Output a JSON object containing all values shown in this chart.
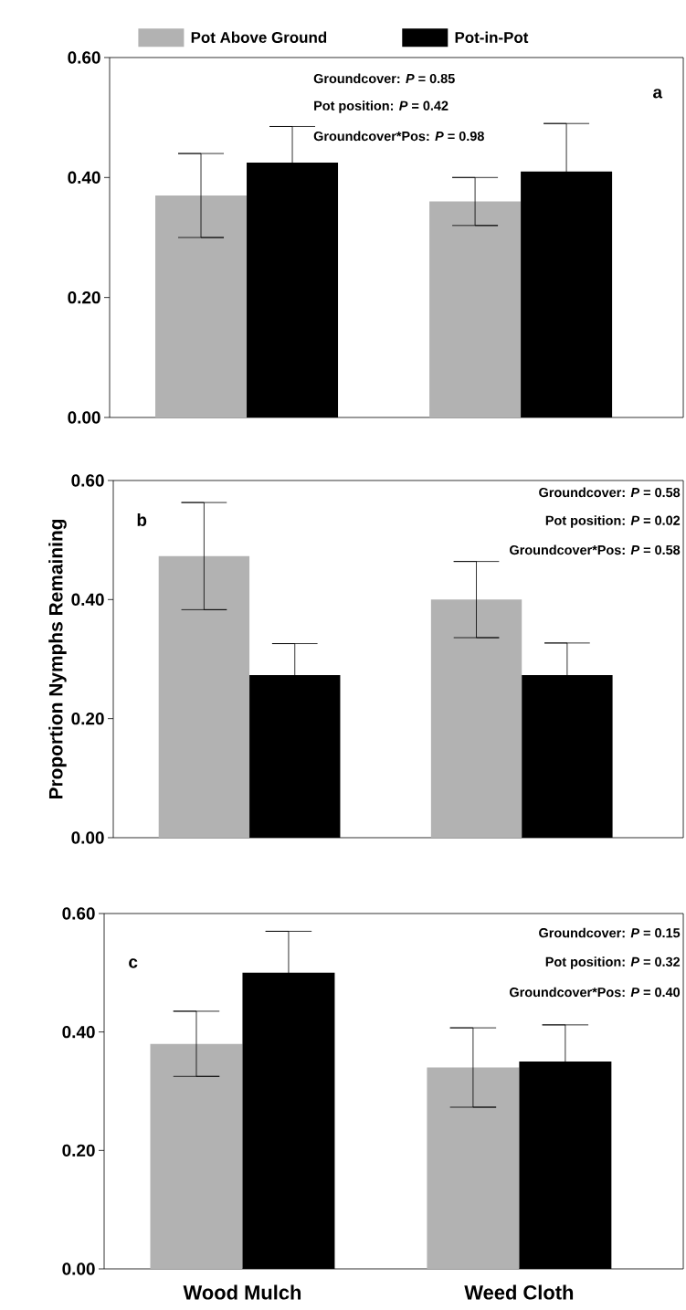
{
  "chart_data": [
    {
      "type": "bar",
      "categories": [
        null,
        null
      ],
      "series": [
        {
          "name": "Pot Above Ground",
          "color": "#b2b2b2",
          "values": [
            0.37,
            0.36
          ],
          "errors": [
            0.07,
            0.04
          ]
        },
        {
          "name": "Pot-in-Pot",
          "color": "#000000",
          "values": [
            0.425,
            0.41
          ],
          "errors": [
            0.06,
            0.08
          ]
        }
      ],
      "ylim": [
        0,
        0.6
      ],
      "yticks": [
        {
          "value": 0,
          "label": "0.00"
        },
        {
          "value": 0.2,
          "label": "0.20"
        },
        {
          "value": 0.4,
          "label": "0.40"
        },
        {
          "value": 0.6,
          "label": "0.60"
        }
      ],
      "tick_labels": "y",
      "legend": "top",
      "annotations": [
        "Groundcover: *P* = 0.85",
        "Pot position: *P* = 0.42",
        "Groundcover*Pos: *P* = 0.98",
        "a"
      ]
    },
    {
      "type": "bar",
      "categories": [
        null,
        null
      ],
      "series": [
        {
          "color": "#b2b2b2",
          "values": [
            0.473,
            0.4
          ],
          "errors": [
            0.09,
            0.064
          ]
        },
        {
          "color": "#000000",
          "values": [
            0.273,
            0.273
          ],
          "errors": [
            0.053,
            0.054
          ]
        }
      ],
      "ylim": [
        0,
        0.6
      ],
      "yticks": [
        {
          "value": 0,
          "label": "0.00"
        },
        {
          "value": 0.2,
          "label": "0.20"
        },
        {
          "value": 0.4,
          "label": "0.40"
        },
        {
          "value": 0.6,
          "label": "0.60"
        }
      ],
      "tick_labels": "y",
      "ylabel": "Proportion Nymphs Remaining",
      "annotations": [
        "Groundcover: *P* = 0.58",
        "Pot position: *P* = 0.02",
        "Groundcover*Pos: *P* = 0.58",
        "b"
      ]
    },
    {
      "type": "bar",
      "categories": [
        "Wood Mulch",
        "Weed Cloth"
      ],
      "series": [
        {
          "color": "#b2b2b2",
          "values": [
            0.38,
            0.34
          ],
          "errors": [
            0.055,
            0.067
          ]
        },
        {
          "color": "#000000",
          "values": [
            0.5,
            0.35
          ],
          "errors": [
            0.07,
            0.062
          ]
        }
      ],
      "ylim": [
        0,
        0.6
      ],
      "yticks": [
        {
          "value": 0,
          "label": "0.00"
        },
        {
          "value": 0.2,
          "label": "0.20"
        },
        {
          "value": 0.4,
          "label": "0.40"
        },
        {
          "value": 0.6,
          "label": "0.60"
        }
      ],
      "annotations": [
        "Groundcover: *P* = 0.15",
        "Pot position: *P* = 0.32",
        "Groundcover*Pos: *P* = 0.40",
        "c"
      ]
    }
  ]
}
